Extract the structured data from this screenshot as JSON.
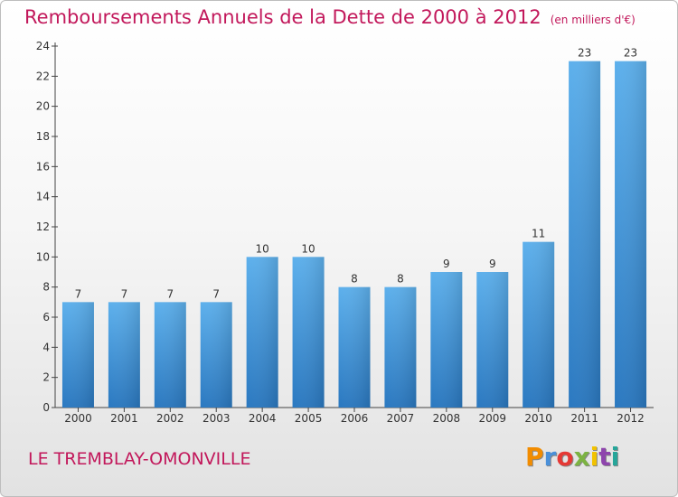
{
  "title": "Remboursements Annuels de la Dette de 2000 à 2012",
  "unit": "(en milliers d'€)",
  "commune": "LE TREMBLAY-OMONVILLE",
  "logo": {
    "text": "Proxiti",
    "colors": [
      "#f28c00",
      "#4a90d9",
      "#e53935",
      "#7cb342",
      "#f2c200",
      "#8e44ad",
      "#26a69a"
    ]
  },
  "colors": {
    "bar": "#4a9fe0",
    "bar_dark": "#2a78c0",
    "title": "#c2185b"
  },
  "chart_data": {
    "type": "bar",
    "categories": [
      "2000",
      "2001",
      "2002",
      "2003",
      "2004",
      "2005",
      "2006",
      "2007",
      "2008",
      "2009",
      "2010",
      "2011",
      "2012"
    ],
    "values": [
      7,
      7,
      7,
      7,
      10,
      10,
      8,
      8,
      9,
      9,
      11,
      23,
      23
    ],
    "ylim": [
      0,
      24
    ],
    "yticks": [
      0,
      2,
      4,
      6,
      8,
      10,
      12,
      14,
      16,
      18,
      20,
      22,
      24
    ],
    "grid": false,
    "legend": "none"
  }
}
